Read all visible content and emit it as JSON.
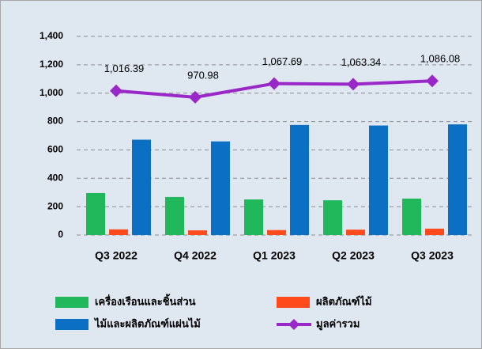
{
  "chart_data": {
    "type": "bar",
    "categories": [
      "Q3 2022",
      "Q4 2022",
      "Q1 2023",
      "Q2 2023",
      "Q3 2023"
    ],
    "series": [
      {
        "name": "เครื่องเรือนและชิ้นส่วน",
        "color": "#21b85b",
        "values": [
          296,
          268,
          251,
          245,
          257
        ]
      },
      {
        "name": "ผลิตภัณฑ์ไม้",
        "color": "#ff4a1c",
        "values": [
          40,
          33,
          35,
          38,
          45
        ]
      },
      {
        "name": "ไม้และผลิตภัณฑ์แผ่นไม้",
        "color": "#0b70c4",
        "values": [
          672,
          660,
          776,
          772,
          780
        ]
      },
      {
        "name": "มูลค่ารวม",
        "color": "#9a28c9",
        "type": "line",
        "values": [
          1016.39,
          970.98,
          1067.69,
          1063.34,
          1086.08
        ],
        "value_labels": [
          "1,016.39",
          "970.98",
          "1,067.69",
          "1,063.34",
          "1,086.08"
        ]
      }
    ],
    "ylim": [
      0,
      1400
    ],
    "yticks": [
      0,
      200,
      400,
      600,
      800,
      {
        "value": 1000,
        "label": "1,000"
      },
      {
        "value": 1200,
        "label": "1,200"
      },
      {
        "value": 1400,
        "label": "1,400"
      }
    ],
    "grid": true
  }
}
